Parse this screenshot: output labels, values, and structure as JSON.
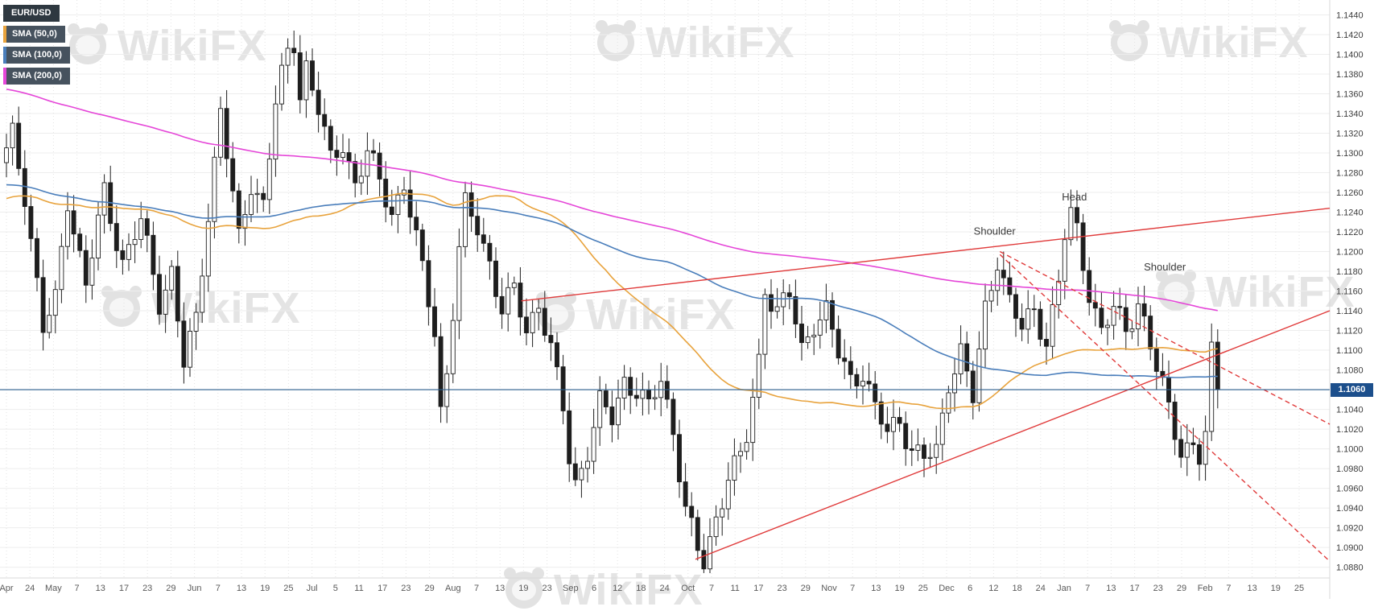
{
  "watermark": {
    "text": "WikiFX"
  },
  "legend": {
    "symbol": "EUR/USD"
  },
  "price_axis": {
    "current_price": "1.1060",
    "badge_color": "#1c4f8c",
    "ticks": [
      "1.1440",
      "1.1420",
      "1.1400",
      "1.1380",
      "1.1360",
      "1.1340",
      "1.1320",
      "1.1300",
      "1.1280",
      "1.1260",
      "1.1240",
      "1.1220",
      "1.1200",
      "1.1180",
      "1.1160",
      "1.1140",
      "1.1120",
      "1.1100",
      "1.1080",
      "1.1060",
      "1.1040",
      "1.1020",
      "1.1000",
      "1.0980",
      "1.0960",
      "1.0940",
      "1.0920",
      "1.0900",
      "1.0880"
    ]
  },
  "time_axis": {
    "labels": [
      "Apr",
      "24",
      "May",
      "7",
      "13",
      "17",
      "23",
      "29",
      "Jun",
      "7",
      "13",
      "19",
      "25",
      "Jul",
      "5",
      "11",
      "17",
      "23",
      "29",
      "Aug",
      "7",
      "13",
      "19",
      "23",
      "Sep",
      "6",
      "12",
      "18",
      "24",
      "Oct",
      "7",
      "11",
      "17",
      "23",
      "29",
      "Nov",
      "7",
      "13",
      "19",
      "25",
      "Dec",
      "6",
      "12",
      "18",
      "24",
      "Jan",
      "7",
      "13",
      "17",
      "23",
      "29",
      "Feb",
      "7",
      "13",
      "19",
      "25"
    ]
  },
  "chart_data": {
    "type": "candlestick",
    "symbol": "EUR/USD",
    "title": "EUR/USD daily candlestick chart with SMA(50), SMA(100), SMA(200), head-and-shoulders annotation",
    "price_range": {
      "max": 1.144,
      "min": 1.088,
      "step": 0.002
    },
    "x_range": {
      "start": "Apr",
      "end": "Feb",
      "n_candles": 199
    },
    "current_price": 1.106,
    "candle_up_color": "#fdfdfd",
    "candle_down_color": "#1e1e1e",
    "close_keypoints": [
      [
        0,
        1.13
      ],
      [
        1,
        1.132
      ],
      [
        3,
        1.126
      ],
      [
        6,
        1.112
      ],
      [
        8,
        1.115
      ],
      [
        10,
        1.1255
      ],
      [
        13,
        1.1165
      ],
      [
        16,
        1.126
      ],
      [
        19,
        1.119
      ],
      [
        22,
        1.123
      ],
      [
        25,
        1.115
      ],
      [
        27,
        1.118
      ],
      [
        29,
        1.1085
      ],
      [
        31,
        1.113
      ],
      [
        33,
        1.124
      ],
      [
        35,
        1.1345
      ],
      [
        38,
        1.121
      ],
      [
        40,
        1.127
      ],
      [
        42,
        1.125
      ],
      [
        44,
        1.135
      ],
      [
        46,
        1.14
      ],
      [
        47,
        1.1412
      ],
      [
        48,
        1.136
      ],
      [
        49,
        1.139
      ],
      [
        51,
        1.1345
      ],
      [
        53,
        1.129
      ],
      [
        55,
        1.131
      ],
      [
        57,
        1.127
      ],
      [
        59,
        1.13
      ],
      [
        61,
        1.127
      ],
      [
        63,
        1.124
      ],
      [
        65,
        1.127
      ],
      [
        67,
        1.121
      ],
      [
        69,
        1.115
      ],
      [
        70,
        1.112
      ],
      [
        71,
        1.104
      ],
      [
        72,
        1.108
      ],
      [
        74,
        1.12
      ],
      [
        75,
        1.1245
      ],
      [
        77,
        1.1225
      ],
      [
        79,
        1.119
      ],
      [
        81,
        1.114
      ],
      [
        83,
        1.116
      ],
      [
        85,
        1.112
      ],
      [
        87,
        1.115
      ],
      [
        89,
        1.11
      ],
      [
        91,
        1.104
      ],
      [
        92,
        1.099
      ],
      [
        93,
        1.0965
      ],
      [
        95,
        1.1
      ],
      [
        97,
        1.1045
      ],
      [
        99,
        1.103
      ],
      [
        101,
        1.107
      ],
      [
        103,
        1.106
      ],
      [
        105,
        1.104
      ],
      [
        107,
        1.107
      ],
      [
        109,
        1.102
      ],
      [
        111,
        1.094
      ],
      [
        113,
        1.0895
      ],
      [
        114,
        1.0882
      ],
      [
        116,
        1.093
      ],
      [
        118,
        1.0975
      ],
      [
        120,
        1.099
      ],
      [
        121,
        1.101
      ],
      [
        123,
        1.109
      ],
      [
        124,
        1.1165
      ],
      [
        126,
        1.114
      ],
      [
        128,
        1.1155
      ],
      [
        130,
        1.11
      ],
      [
        132,
        1.113
      ],
      [
        134,
        1.114
      ],
      [
        136,
        1.1095
      ],
      [
        138,
        1.107
      ],
      [
        140,
        1.108
      ],
      [
        142,
        1.104
      ],
      [
        144,
        1.1015
      ],
      [
        146,
        1.103
      ],
      [
        148,
        1.1
      ],
      [
        150,
        1.099
      ],
      [
        152,
        1.0995
      ],
      [
        154,
        1.107
      ],
      [
        156,
        1.11
      ],
      [
        158,
        1.105
      ],
      [
        160,
        1.114
      ],
      [
        162,
        1.1195
      ],
      [
        164,
        1.115
      ],
      [
        166,
        1.112
      ],
      [
        168,
        1.114
      ],
      [
        170,
        1.111
      ],
      [
        172,
        1.117
      ],
      [
        173,
        1.1215
      ],
      [
        174,
        1.1235
      ],
      [
        175,
        1.122
      ],
      [
        177,
        1.116
      ],
      [
        179,
        1.112
      ],
      [
        181,
        1.114
      ],
      [
        183,
        1.112
      ],
      [
        185,
        1.115
      ],
      [
        186,
        1.113
      ],
      [
        188,
        1.108
      ],
      [
        190,
        1.104
      ],
      [
        192,
        1.1
      ],
      [
        194,
        1.1005
      ],
      [
        195,
        1.099
      ],
      [
        196,
        1.101
      ],
      [
        197,
        1.1095
      ],
      [
        198,
        1.106
      ]
    ],
    "noise": {
      "amp1": 0.0009,
      "freq1": 1.7,
      "amp2": 0.0006,
      "freq2": 0.83,
      "phase2": 2.1,
      "wick_base": 0.0006,
      "wick_amp": 0.0013
    },
    "sma": [
      {
        "label": "SMA (50,0)",
        "period": 50,
        "color": "#e8a33d"
      },
      {
        "label": "SMA (100,0)",
        "period": 100,
        "color": "#4a7ebb"
      },
      {
        "label": "SMA (200,0)",
        "period": 200,
        "color": "#e546d8"
      }
    ],
    "sma_history": {
      "days": 200,
      "keypoints": [
        [
          0,
          1.156
        ],
        [
          70,
          1.143
        ],
        [
          130,
          1.126
        ],
        [
          170,
          1.123
        ],
        [
          199,
          1.1295
        ]
      ]
    },
    "trendlines": [
      {
        "style": "solid",
        "color": "#e03b3b",
        "from": [
          0.392,
          1.115
        ],
        "to": [
          1.0,
          1.1244
        ]
      },
      {
        "style": "solid",
        "color": "#e03b3b",
        "from": [
          0.523,
          1.0888
        ],
        "to": [
          1.0,
          1.114
        ]
      },
      {
        "style": "dashed",
        "color": "#e03b3b",
        "from": [
          0.752,
          1.12
        ],
        "to": [
          1.0,
          1.1025
        ]
      },
      {
        "style": "dashed",
        "color": "#e03b3b",
        "from": [
          0.752,
          1.1197
        ],
        "to": [
          1.0,
          1.0886
        ]
      }
    ],
    "annotations": [
      {
        "text": "Shoulder",
        "x": 0.748,
        "price": 1.1217
      },
      {
        "text": "Head",
        "x": 0.808,
        "price": 1.1252
      },
      {
        "text": "Shoulder",
        "x": 0.876,
        "price": 1.1181
      }
    ],
    "grid": true,
    "legend_position": "top-left"
  }
}
